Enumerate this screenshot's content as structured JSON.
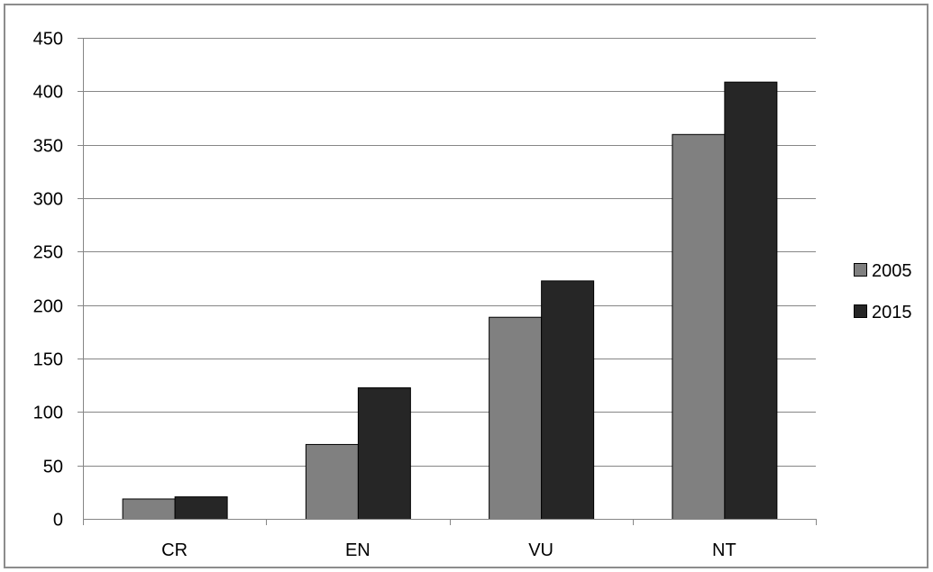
{
  "chart_data": {
    "type": "bar",
    "title": "",
    "xlabel": "",
    "ylabel": "",
    "categories": [
      "CR",
      "EN",
      "VU",
      "NT"
    ],
    "series": [
      {
        "name": "2005",
        "values": [
          19,
          70,
          189,
          360
        ],
        "color": "#808080"
      },
      {
        "name": "2015",
        "values": [
          21,
          123,
          223,
          409
        ],
        "color": "#262626"
      }
    ],
    "ylim": [
      0,
      450
    ],
    "yticks": [
      0,
      50,
      100,
      150,
      200,
      250,
      300,
      350,
      400,
      450
    ],
    "grid": true,
    "legend_position": "right"
  }
}
